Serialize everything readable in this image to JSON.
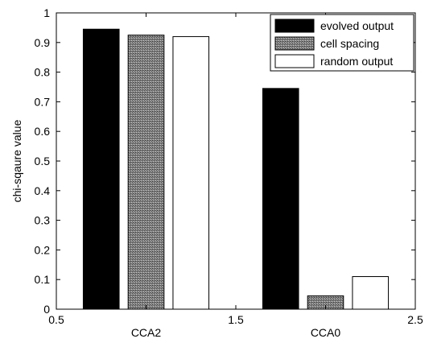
{
  "chart_data": {
    "type": "bar",
    "ylabel": "chi-sqaure value",
    "xlim": [
      0.5,
      2.5
    ],
    "ylim": [
      0,
      1
    ],
    "x_ticks": [
      {
        "value": 0.5,
        "label": "0.5"
      },
      {
        "value": 1.5,
        "label": "1.5"
      },
      {
        "value": 2.5,
        "label": "2.5"
      }
    ],
    "category_labels": [
      {
        "value": 1,
        "label": "CCA2"
      },
      {
        "value": 2,
        "label": "CCA0"
      }
    ],
    "y_ticks": [
      {
        "value": 0,
        "label": "0"
      },
      {
        "value": 0.1,
        "label": "0.1"
      },
      {
        "value": 0.2,
        "label": "0.2"
      },
      {
        "value": 0.3,
        "label": "0.3"
      },
      {
        "value": 0.4,
        "label": "0.4"
      },
      {
        "value": 0.5,
        "label": "0.5"
      },
      {
        "value": 0.6,
        "label": "0.6"
      },
      {
        "value": 0.7,
        "label": "0.7"
      },
      {
        "value": 0.8,
        "label": "0.8"
      },
      {
        "value": 0.9,
        "label": "0.9"
      },
      {
        "value": 1,
        "label": "1"
      }
    ],
    "categories": [
      "CCA2",
      "CCA0"
    ],
    "series": [
      {
        "name": "evolved output",
        "values": [
          0.945,
          0.745
        ],
        "color": "#000000",
        "pattern": "solid"
      },
      {
        "name": "cell spacing",
        "values": [
          0.925,
          0.045
        ],
        "color": "#7f7f7f",
        "pattern": "dither"
      },
      {
        "name": "random output",
        "values": [
          0.92,
          0.11
        ],
        "color": "#ffffff",
        "pattern": "solid"
      }
    ],
    "legend_position": "top-right",
    "grid": false
  }
}
